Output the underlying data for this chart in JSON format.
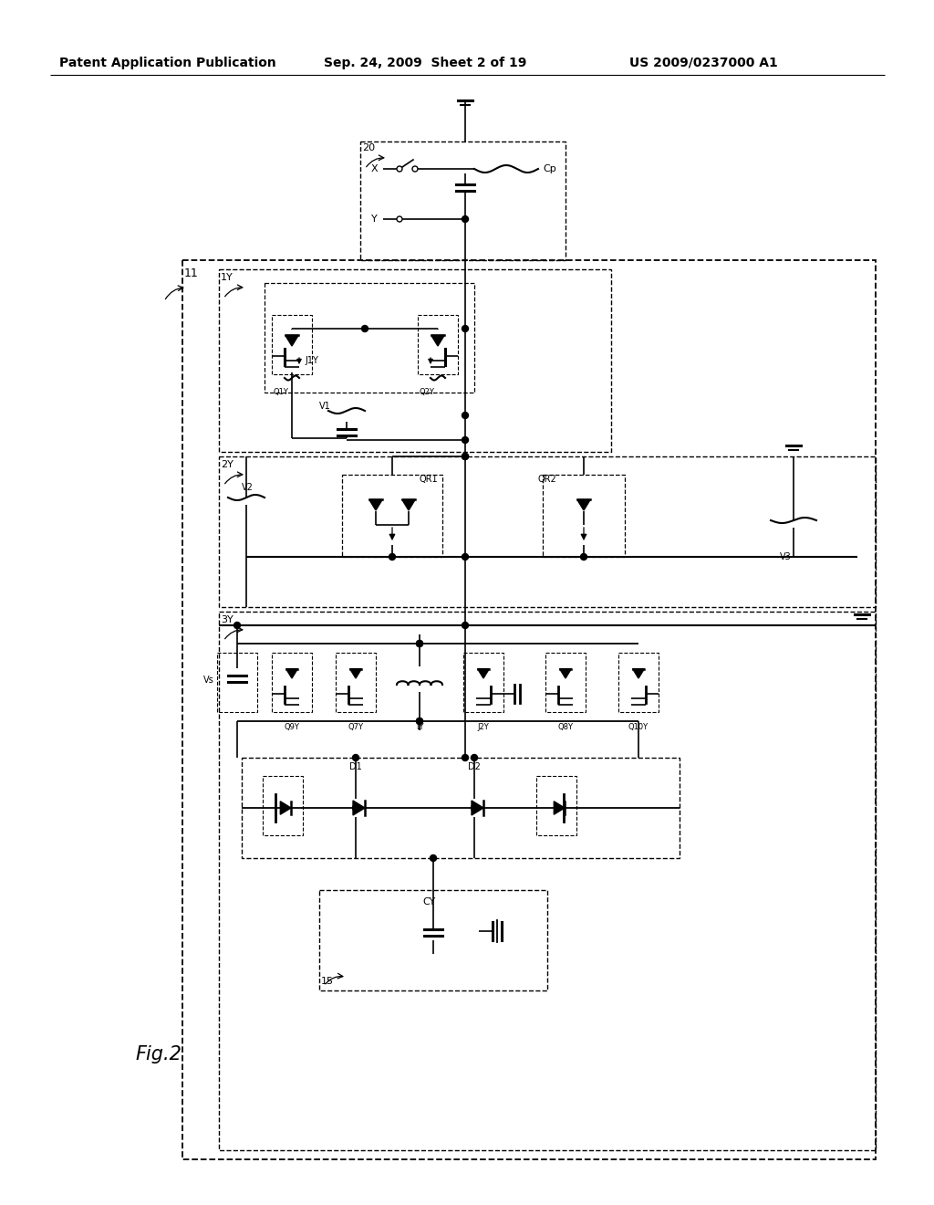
{
  "title_line1": "Patent Application Publication",
  "title_line2": "Sep. 24, 2009  Sheet 2 of 19",
  "title_line3": "US 2009/0237000 A1",
  "fig_label": "Fig.2",
  "background": "#ffffff",
  "line_color": "#000000",
  "font_size_header": 10,
  "font_size_label": 8,
  "font_size_small": 7,
  "font_size_fig": 15
}
